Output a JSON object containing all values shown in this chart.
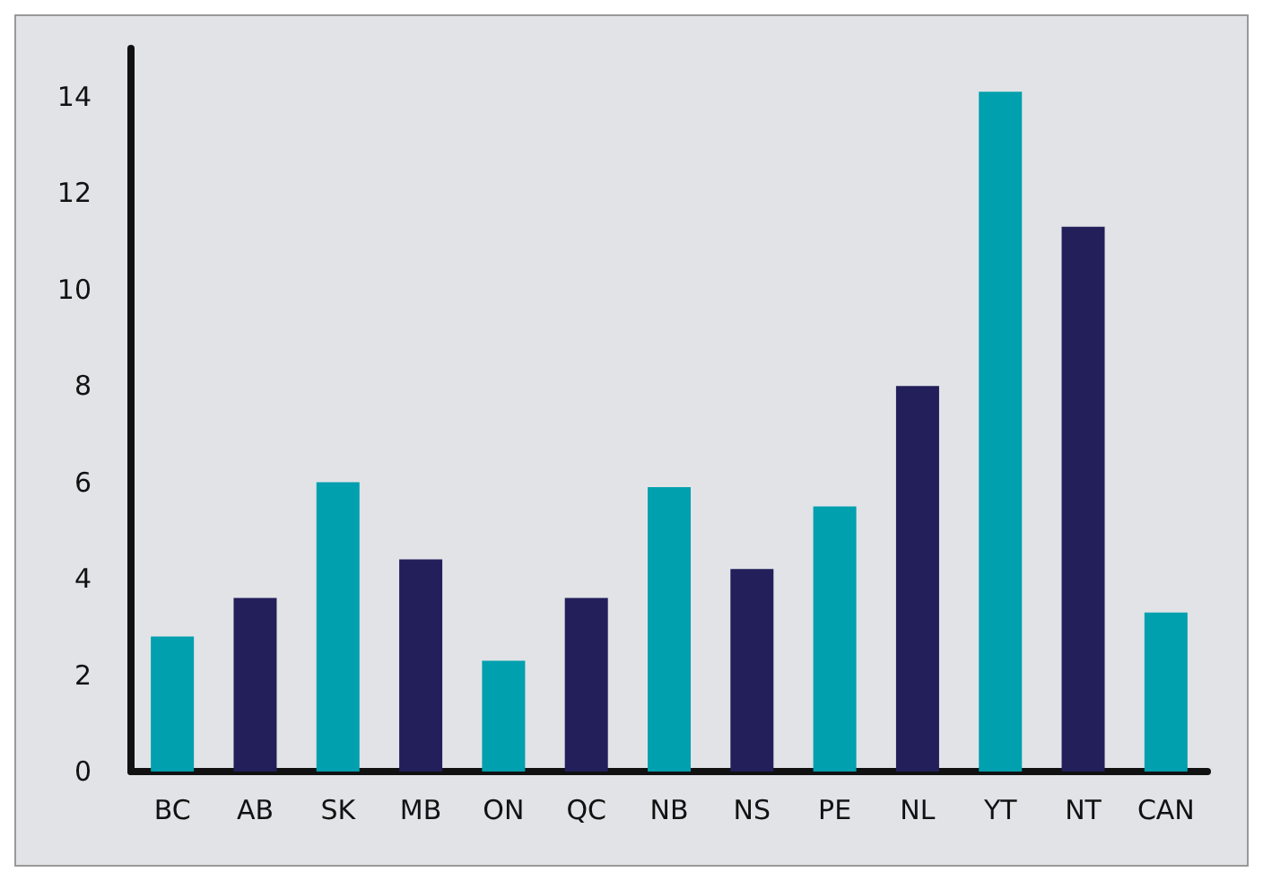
{
  "chart_data": {
    "type": "bar",
    "categories": [
      "BC",
      "AB",
      "SK",
      "MB",
      "ON",
      "QC",
      "NB",
      "NS",
      "PE",
      "NL",
      "YT",
      "NT",
      "CAN"
    ],
    "values": [
      2.8,
      3.6,
      6.0,
      4.4,
      2.3,
      3.6,
      5.9,
      4.2,
      5.5,
      8.0,
      14.1,
      11.3,
      3.3
    ],
    "colors": [
      "#00a0ae",
      "#221f5a",
      "#00a0ae",
      "#221f5a",
      "#00a0ae",
      "#221f5a",
      "#00a0ae",
      "#221f5a",
      "#00a0ae",
      "#221f5a",
      "#00a0ae",
      "#221f5a",
      "#00a0ae"
    ],
    "ylim": [
      0,
      15
    ],
    "yticks": [
      0,
      2,
      4,
      6,
      8,
      10,
      12,
      14
    ],
    "grid": false
  }
}
